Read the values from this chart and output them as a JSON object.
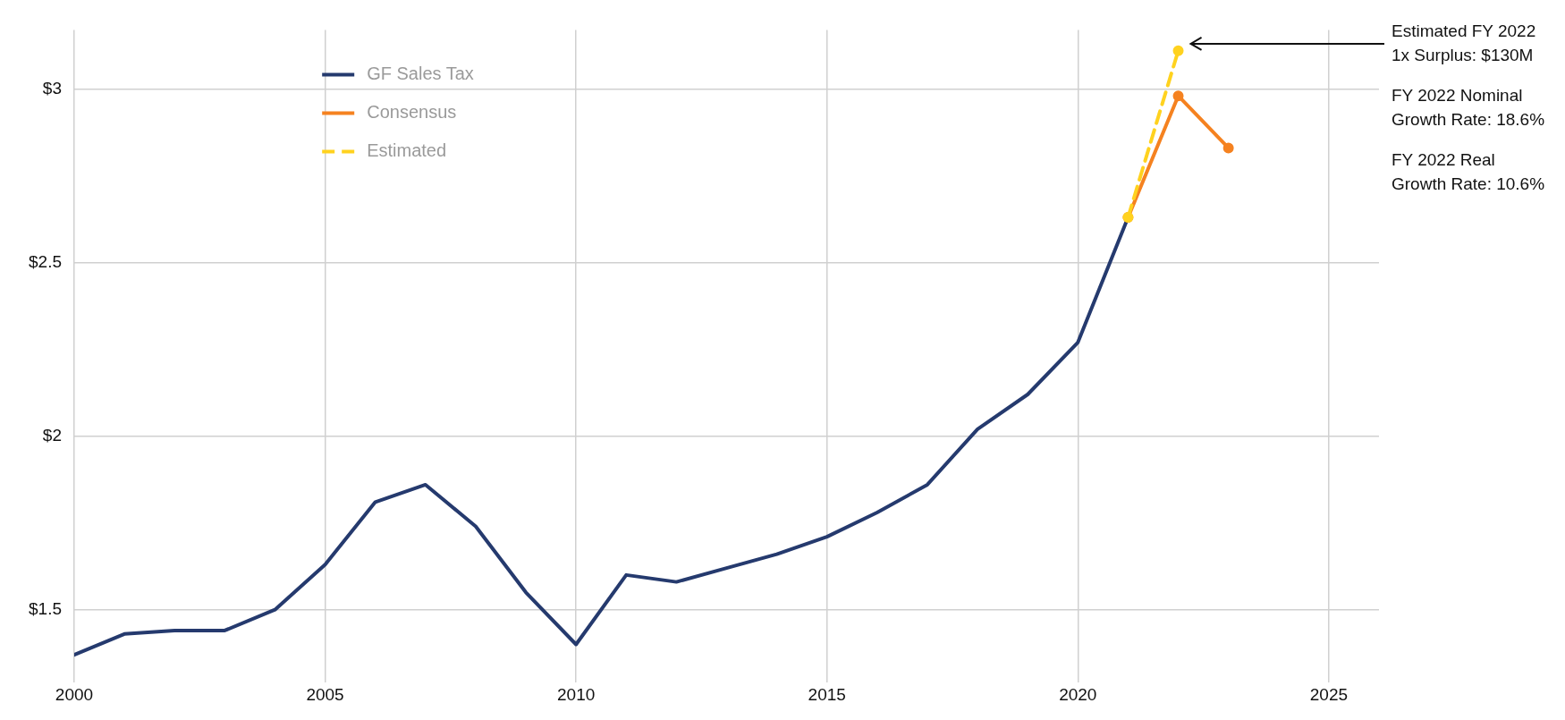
{
  "chart_data": {
    "type": "line",
    "x": [
      2000,
      2001,
      2002,
      2003,
      2004,
      2005,
      2006,
      2007,
      2008,
      2009,
      2010,
      2011,
      2012,
      2013,
      2014,
      2015,
      2016,
      2017,
      2018,
      2019,
      2020,
      2021
    ],
    "series": [
      {
        "name": "GF Sales Tax",
        "color": "#253a6e",
        "marker": "none",
        "line_style": "solid",
        "values": [
          1.37,
          1.43,
          1.44,
          1.44,
          1.5,
          1.63,
          1.81,
          1.86,
          1.74,
          1.55,
          1.4,
          1.6,
          1.58,
          1.62,
          1.66,
          1.71,
          1.78,
          1.86,
          2.02,
          2.12,
          2.27,
          2.63
        ]
      },
      {
        "name": "Consensus",
        "color": "#f58220",
        "marker": "circle",
        "line_style": "solid",
        "x": [
          2021,
          2022,
          2023
        ],
        "values": [
          2.63,
          2.98,
          2.83
        ]
      },
      {
        "name": "Estimated",
        "color": "#ffd21f",
        "marker": "circle",
        "line_style": "dashed",
        "x": [
          2021,
          2022
        ],
        "values": [
          2.63,
          3.11
        ]
      }
    ],
    "xlim": [
      2000,
      2026
    ],
    "xticks": [
      2000,
      2005,
      2010,
      2015,
      2020,
      2025
    ],
    "ylim": [
      1.29,
      3.17
    ],
    "yticks": [
      {
        "value": 1.5,
        "label": "$1.5"
      },
      {
        "value": 2,
        "label": "$2"
      },
      {
        "value": 2.5,
        "label": "$2.5"
      },
      {
        "value": 3,
        "label": "$3"
      }
    ],
    "grid": true,
    "legend": "top left",
    "annotations": [
      "Estimated FY 2022\n1x Surplus: $130M",
      "FY 2022 Nominal\nGrowth Rate: 18.6%",
      "FY 2022 Real\nGrowth Rate: 10.6%"
    ]
  }
}
